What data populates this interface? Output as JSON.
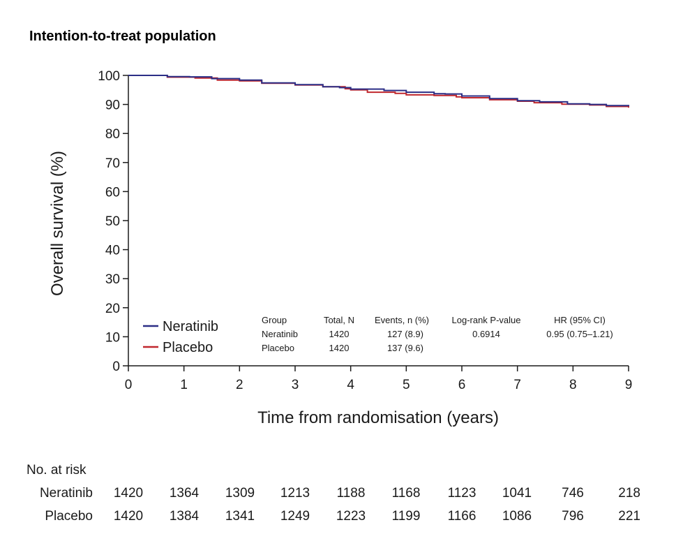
{
  "chart_data": {
    "type": "line",
    "title": "Intention-to-treat population",
    "xlabel": "Time from randomisation (years)",
    "ylabel": "Overall survival (%)",
    "xlim": [
      0,
      9
    ],
    "ylim": [
      0,
      100
    ],
    "x_ticks": [
      "0",
      "1",
      "2",
      "3",
      "4",
      "5",
      "6",
      "7",
      "8",
      "9"
    ],
    "y_ticks": [
      "0",
      "10",
      "20",
      "30",
      "40",
      "50",
      "60",
      "70",
      "80",
      "90",
      "100"
    ],
    "grid": false,
    "legend_position": "bottom-left",
    "series": [
      {
        "name": "Neratinib",
        "color": "#2b2e86",
        "points": [
          [
            0,
            100
          ],
          [
            0.6,
            100
          ],
          [
            0.7,
            99.6
          ],
          [
            1.1,
            99.5
          ],
          [
            1.5,
            98.9
          ],
          [
            2.0,
            98.4
          ],
          [
            2.4,
            97.4
          ],
          [
            3.0,
            96.8
          ],
          [
            3.5,
            96.1
          ],
          [
            3.8,
            95.8
          ],
          [
            4.0,
            95.3
          ],
          [
            4.6,
            94.8
          ],
          [
            5.0,
            94.2
          ],
          [
            5.5,
            93.7
          ],
          [
            5.7,
            93.6
          ],
          [
            6.0,
            92.9
          ],
          [
            6.5,
            92.0
          ],
          [
            7.0,
            91.3
          ],
          [
            7.4,
            90.9
          ],
          [
            7.9,
            90.2
          ],
          [
            8.3,
            90.0
          ],
          [
            8.6,
            89.6
          ],
          [
            9.0,
            89.4
          ]
        ]
      },
      {
        "name": "Placebo",
        "color": "#c0272d",
        "points": [
          [
            0,
            100
          ],
          [
            0.4,
            100
          ],
          [
            0.7,
            99.4
          ],
          [
            1.2,
            99.1
          ],
          [
            1.6,
            98.4
          ],
          [
            2.0,
            98.1
          ],
          [
            2.4,
            97.3
          ],
          [
            3.0,
            96.7
          ],
          [
            3.5,
            96.1
          ],
          [
            3.9,
            95.4
          ],
          [
            4.0,
            95.0
          ],
          [
            4.3,
            94.2
          ],
          [
            4.8,
            93.8
          ],
          [
            5.0,
            93.3
          ],
          [
            5.5,
            93.1
          ],
          [
            5.9,
            92.6
          ],
          [
            6.0,
            92.3
          ],
          [
            6.5,
            91.6
          ],
          [
            7.0,
            91.1
          ],
          [
            7.3,
            90.6
          ],
          [
            7.8,
            90.1
          ],
          [
            8.3,
            89.8
          ],
          [
            8.6,
            89.3
          ],
          [
            9.0,
            88.9
          ]
        ]
      }
    ],
    "stats_table": {
      "headers": [
        "Group",
        "Total, N",
        "Events, n (%)",
        "Log-rank P-value",
        "HR (95% CI)"
      ],
      "rows": [
        [
          "Neratinib",
          "1420",
          "127 (8.9)",
          "0.6914",
          "0.95 (0.75–1.21)"
        ],
        [
          "Placebo",
          "1420",
          "137 (9.6)",
          "",
          ""
        ]
      ]
    },
    "risk_table": {
      "title": "No. at risk",
      "rows": [
        {
          "group": "Neratinib",
          "values": [
            "1420",
            "1364",
            "1309",
            "1213",
            "1188",
            "1168",
            "1123",
            "1041",
            "746",
            "218"
          ]
        },
        {
          "group": "Placebo",
          "values": [
            "1420",
            "1384",
            "1341",
            "1249",
            "1223",
            "1199",
            "1166",
            "1086",
            "796",
            "221"
          ]
        }
      ]
    }
  }
}
